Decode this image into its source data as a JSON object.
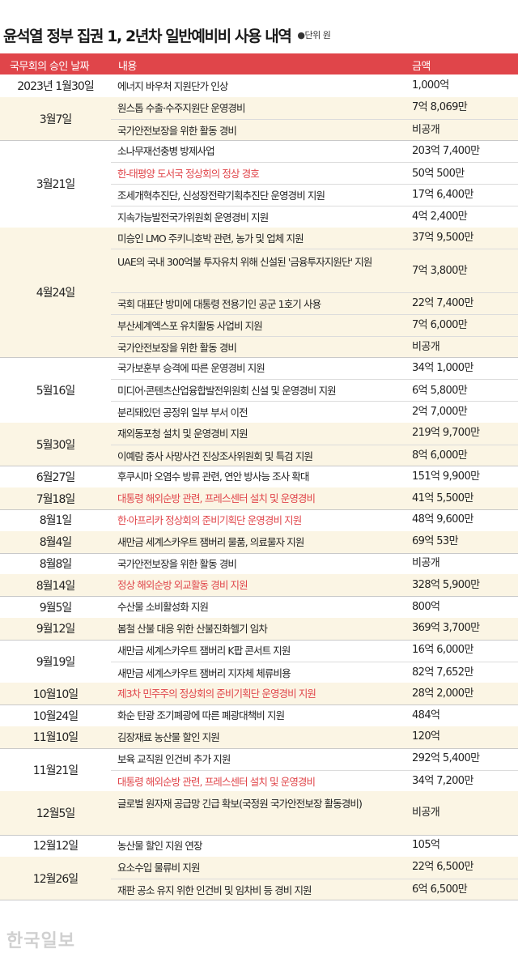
{
  "title": "윤석열 정부 집권 1, 2년차 일반예비비 사용 내역",
  "unit_note": "●단위 원",
  "header": {
    "date": "국무회의 승인 날짜",
    "content": "내용",
    "amount": "금액"
  },
  "colors": {
    "accent": "#e0454a",
    "shade": "#fbf5e4"
  },
  "groups": [
    {
      "date": "2023년 1월30일",
      "rows": [
        {
          "content": "에너지 바우처 지원단가 인상",
          "amount": "1,000억"
        }
      ]
    },
    {
      "date": "3월7일",
      "rows": [
        {
          "content": "원스톱 수출·수주지원단 운영경비",
          "amount": "7억 8,069만"
        },
        {
          "content": "국가안전보장을 위한 활동 경비",
          "amount": "비공개"
        }
      ]
    },
    {
      "date": "3월21일",
      "rows": [
        {
          "content": "소나무재선충병 방제사업",
          "amount": "203억 7,400만"
        },
        {
          "content": "한-태평양 도서국 정상회의 정상 경호",
          "amount": "50억 500만",
          "highlight": true
        },
        {
          "content": "조세개혁추진단, 신성장전략기획추진단 운영경비 지원",
          "amount": "17억 6,400만"
        },
        {
          "content": "지속가능발전국가위원회 운영경비 지원",
          "amount": "4억 2,400만"
        }
      ]
    },
    {
      "date": "4월24일",
      "rows": [
        {
          "content": "미승인 LMO 주키니호박 관련, 농가 및 업체 지원",
          "amount": "37억 9,500만"
        },
        {
          "content": "UAE의 국내 300억불 투자유치 위해 신설된 '금융투자지원단' 지원",
          "amount": "7억 3,800만"
        },
        {
          "content": "국회 대표단 방미에 대통령 전용기인 공군 1호기 사용",
          "amount": "22억 7,400만"
        },
        {
          "content": "부산세계엑스포 유치활동 사업비 지원",
          "amount": "7억 6,000만"
        },
        {
          "content": "국가안전보장을 위한 활동 경비",
          "amount": "비공개"
        }
      ]
    },
    {
      "date": "5월16일",
      "rows": [
        {
          "content": "국가보훈부 승격에 따른 운영경비 지원",
          "amount": "34억 1,000만"
        },
        {
          "content": "미디어·콘텐츠산업융합발전위원회 신설 및 운영경비 지원",
          "amount": "6억 5,800만"
        },
        {
          "content": "분리돼있던 공정위 일부 부서 이전",
          "amount": "2억 7,000만"
        }
      ]
    },
    {
      "date": "5월30일",
      "rows": [
        {
          "content": "재외동포청 설치 및 운영경비 지원",
          "amount": "219억 9,700만"
        },
        {
          "content": "이예람 중사 사망사건 진상조사위원회 및 특검 지원",
          "amount": "8억 6,000만"
        }
      ]
    },
    {
      "date": "6월27일",
      "rows": [
        {
          "content": "후쿠시마 오염수 방류 관련, 연안 방사능 조사 확대",
          "amount": "151억 9,900만"
        }
      ]
    },
    {
      "date": "7월18일",
      "rows": [
        {
          "content": "대통령 해외순방 관련, 프레스센터 설치 및 운영경비",
          "amount": "41억 5,500만",
          "highlight": true
        }
      ]
    },
    {
      "date": "8월1일",
      "rows": [
        {
          "content": "한·아프리카 정상회의 준비기획단 운영경비 지원",
          "amount": "48억 9,600만",
          "highlight": true
        }
      ]
    },
    {
      "date": "8월4일",
      "rows": [
        {
          "content": "새만금 세계스카우트 잼버리 물품, 의료물자 지원",
          "amount": "69억 53만"
        }
      ]
    },
    {
      "date": "8월8일",
      "rows": [
        {
          "content": "국가안전보장을 위한 활동 경비",
          "amount": "비공개"
        }
      ]
    },
    {
      "date": "8월14일",
      "rows": [
        {
          "content": "정상 해외순방 외교활동 경비 지원",
          "amount": "328억 5,900만",
          "highlight": true
        }
      ]
    },
    {
      "date": "9월5일",
      "rows": [
        {
          "content": "수산물 소비활성화 지원",
          "amount": "800억"
        }
      ]
    },
    {
      "date": "9월12일",
      "rows": [
        {
          "content": "봄철 산불 대응 위한 산불진화헬기 임차",
          "amount": "369억 3,700만"
        }
      ]
    },
    {
      "date": "9월19일",
      "rows": [
        {
          "content": "새만금 세계스카우트 잼버리 K팝 콘서트 지원",
          "amount": "16억 6,000만"
        },
        {
          "content": "새만금 세계스카우트 잼버리 지자체 체류비용",
          "amount": "82억 7,652만"
        }
      ]
    },
    {
      "date": "10월10일",
      "rows": [
        {
          "content": "제3차 민주주의 정상회의 준비기획단 운영경비 지원",
          "amount": "28억 2,000만",
          "highlight": true
        }
      ]
    },
    {
      "date": "10월24일",
      "rows": [
        {
          "content": "화순 탄광 조기폐광에 따른 폐광대책비 지원",
          "amount": "484억"
        }
      ]
    },
    {
      "date": "11월10일",
      "rows": [
        {
          "content": "김장재료 농산물 할인 지원",
          "amount": "120억"
        }
      ]
    },
    {
      "date": "11월21일",
      "rows": [
        {
          "content": "보육 교직원 인건비 추가 지원",
          "amount": "292억 5,400만"
        },
        {
          "content": "대통령 해외순방 관련, 프레스센터 설치 및 운영경비",
          "amount": "34억 7,200만",
          "highlight": true
        }
      ]
    },
    {
      "date": "12월5일",
      "rows": [
        {
          "content": "글로벌 원자재 공급망 긴급 확보(국정원 국가안전보장 활동경비)",
          "amount": "비공개"
        }
      ]
    },
    {
      "date": "12월12일",
      "rows": [
        {
          "content": "농산물 할인 지원 연장",
          "amount": "105억"
        }
      ]
    },
    {
      "date": "12월26일",
      "rows": [
        {
          "content": "요소수입 물류비 지원",
          "amount": "22억 6,500만"
        },
        {
          "content": "재판 공소 유지 위한 인건비 및 임차비 등 경비 지원",
          "amount": "6억 6,500만"
        }
      ]
    }
  ],
  "watermark": "한국일보"
}
